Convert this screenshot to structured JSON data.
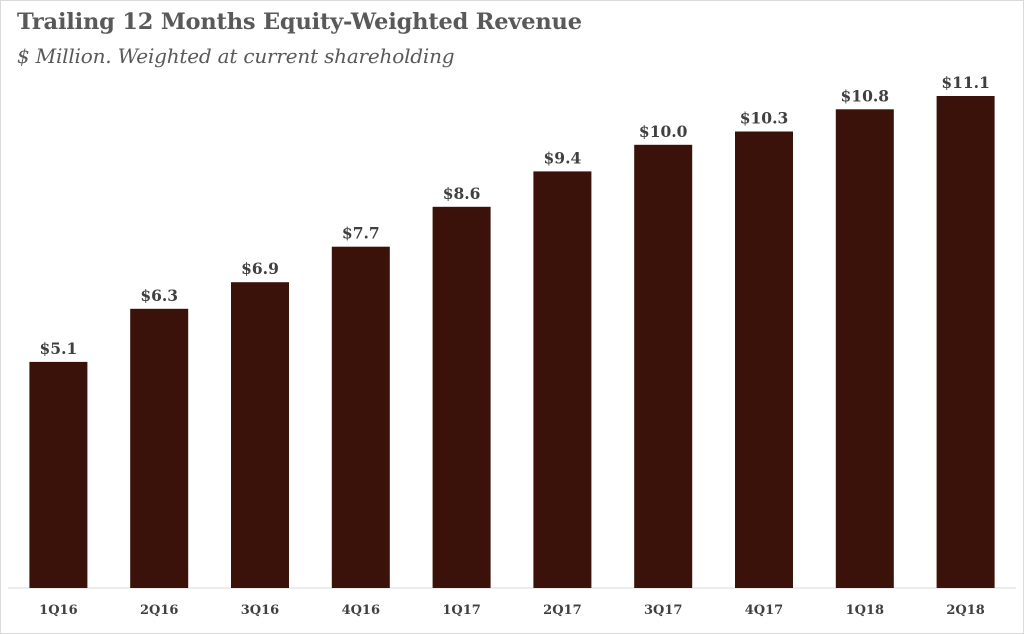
{
  "chart_data": {
    "type": "bar",
    "title": "Trailing 12 Months Equity-Weighted Revenue",
    "subtitle": "$ Million. Weighted at current shareholding",
    "xlabel": "",
    "ylabel": "",
    "categories": [
      "1Q16",
      "2Q16",
      "3Q16",
      "4Q16",
      "1Q17",
      "2Q17",
      "3Q17",
      "4Q17",
      "1Q18",
      "2Q18"
    ],
    "values": [
      5.1,
      6.3,
      6.9,
      7.7,
      8.6,
      9.4,
      10.0,
      10.3,
      10.8,
      11.1
    ],
    "value_labels": [
      "$5.1",
      "$6.3",
      "$6.9",
      "$7.7",
      "$8.6",
      "$9.4",
      "$10.0",
      "$10.3",
      "$10.8",
      "$11.1"
    ],
    "ylim": [
      0,
      11.1
    ],
    "grid": false,
    "legend": "none",
    "colors": {
      "bar": "#3b1209",
      "text": "#404040",
      "title": "#595959",
      "axis": "#d9d9d9"
    }
  }
}
